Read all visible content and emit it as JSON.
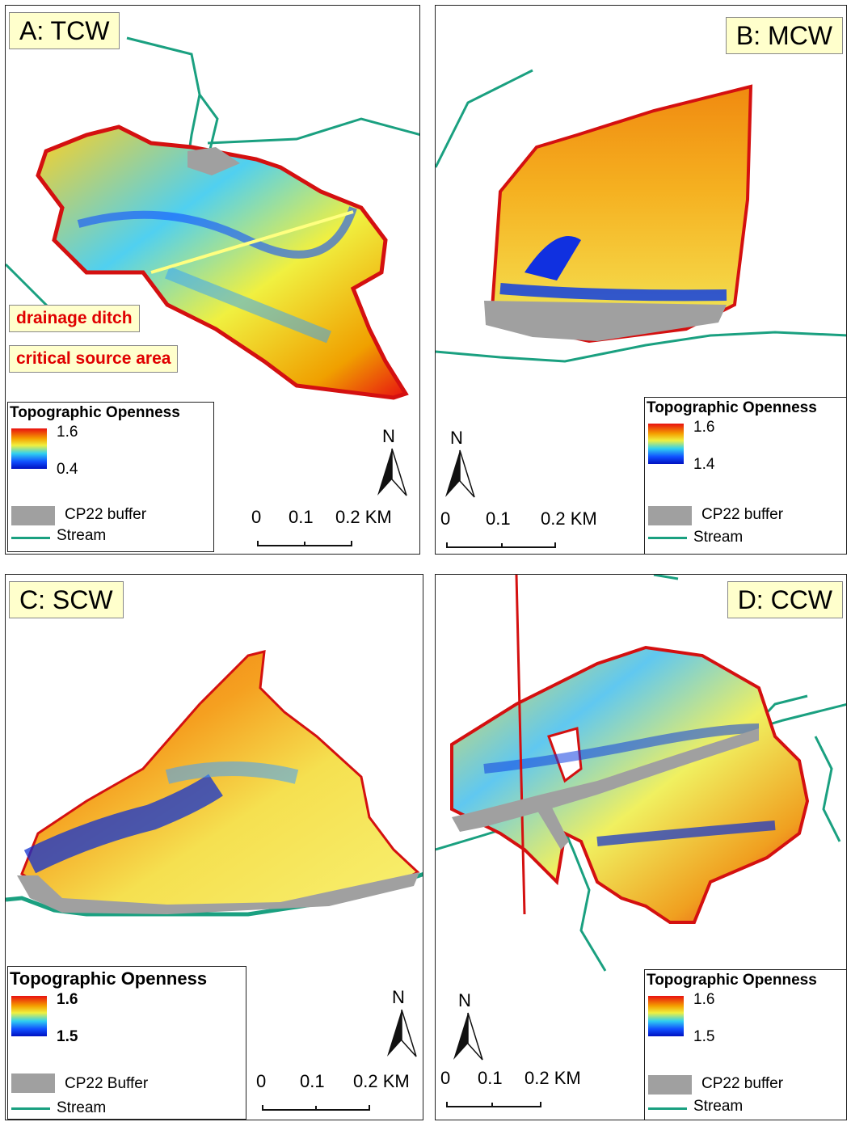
{
  "panels": [
    {
      "id": "A",
      "title": "A: TCW",
      "legend": {
        "title": "Topographic Openness",
        "max": "1.6",
        "min": "0.4",
        "buffer": "CP22 buffer",
        "stream": "Stream"
      },
      "scale": [
        "0",
        "0.1",
        "0.2 KM"
      ],
      "north": "N",
      "callouts": [
        "drainage ditch",
        "critical source area"
      ]
    },
    {
      "id": "B",
      "title": "B: MCW",
      "legend": {
        "title": "Topographic Openness",
        "max": "1.6",
        "min": "1.4",
        "buffer": "CP22 buffer",
        "stream": "Stream"
      },
      "scale": [
        "0",
        "0.1",
        "0.2 KM"
      ],
      "north": "N"
    },
    {
      "id": "C",
      "title": "C: SCW",
      "legend": {
        "title": "Topographic Openness",
        "max": "1.6",
        "min": "1.5",
        "buffer": "CP22 Buffer",
        "stream": "Stream"
      },
      "scale": [
        "0",
        "0.1",
        "0.2 KM"
      ],
      "north": "N"
    },
    {
      "id": "D",
      "title": "D: CCW",
      "legend": {
        "title": "Topographic Openness",
        "max": "1.6",
        "min": "1.5",
        "buffer": "CP22 buffer",
        "stream": "Stream"
      },
      "scale": [
        "0",
        "0.1",
        "0.2 KM"
      ],
      "north": "N"
    }
  ],
  "colors": {
    "stream": "#1aa080",
    "buffer": "#a0a0a0",
    "boundary": "#d41010",
    "high": "#e81010",
    "mid": "#f0f040",
    "low": "#0010c0"
  }
}
